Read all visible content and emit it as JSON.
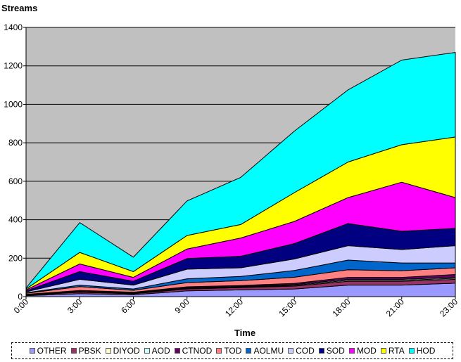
{
  "chart_data": {
    "type": "area",
    "stacked": true,
    "ylabel": "Streams",
    "xlabel": "Time",
    "categories": [
      "0:00",
      "3:00",
      "6:00",
      "9:00",
      "12:00",
      "15:00",
      "18:00",
      "21:00",
      "23:00"
    ],
    "ylim": [
      0,
      1400
    ],
    "yticks": [
      0,
      200,
      400,
      600,
      800,
      1000,
      1200,
      1400
    ],
    "grid": true,
    "plot_background": "#c0c0c0",
    "legend_position": "bottom",
    "series": [
      {
        "name": "OTHER",
        "color": "#9999ff",
        "values": [
          5,
          15,
          10,
          30,
          35,
          40,
          60,
          60,
          70
        ]
      },
      {
        "name": "PBSK",
        "color": "#993366",
        "values": [
          3,
          8,
          5,
          10,
          12,
          15,
          20,
          20,
          20
        ]
      },
      {
        "name": "DIYOD",
        "color": "#ffffcc",
        "values": [
          1,
          2,
          2,
          3,
          3,
          4,
          5,
          5,
          5
        ]
      },
      {
        "name": "AOD",
        "color": "#ccffff",
        "values": [
          1,
          2,
          2,
          3,
          3,
          4,
          5,
          5,
          5
        ]
      },
      {
        "name": "CTNOD",
        "color": "#660066",
        "values": [
          2,
          5,
          4,
          5,
          5,
          6,
          10,
          10,
          15
        ]
      },
      {
        "name": "TOD",
        "color": "#ff8080",
        "values": [
          5,
          20,
          10,
          22,
          25,
          32,
          40,
          35,
          35
        ]
      },
      {
        "name": "AOLMU",
        "color": "#0066cc",
        "values": [
          3,
          8,
          7,
          20,
          22,
          35,
          50,
          40,
          25
        ]
      },
      {
        "name": "COD",
        "color": "#ccccff",
        "values": [
          5,
          30,
          20,
          50,
          45,
          60,
          75,
          70,
          90
        ]
      },
      {
        "name": "SOD",
        "color": "#000080",
        "values": [
          5,
          40,
          20,
          55,
          60,
          80,
          115,
          95,
          90
        ]
      },
      {
        "name": "MOD",
        "color": "#ff00ff",
        "values": [
          5,
          40,
          20,
          50,
          95,
          115,
          135,
          255,
          160
        ]
      },
      {
        "name": "RTA",
        "color": "#ffff00",
        "values": [
          5,
          60,
          30,
          70,
          70,
          150,
          185,
          195,
          315
        ]
      },
      {
        "name": "HOD",
        "color": "#00ffff",
        "values": [
          5,
          155,
          75,
          180,
          245,
          320,
          375,
          440,
          440
        ]
      }
    ]
  }
}
